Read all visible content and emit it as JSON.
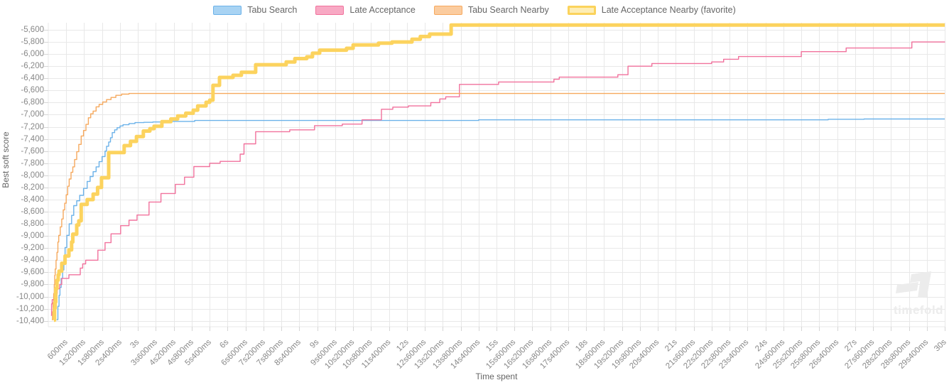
{
  "legend": {
    "items": [
      {
        "id": "tabu-search",
        "label": "Tabu Search",
        "fill": "#a8d3f3",
        "border": "#6cb2e9",
        "border_width": 1.5
      },
      {
        "id": "late-acceptance",
        "label": "Late Acceptance",
        "fill": "#f8a9c4",
        "border": "#f1729d",
        "border_width": 1.5
      },
      {
        "id": "tabu-search-nearby",
        "label": "Tabu Search Nearby",
        "fill": "#fbcc9f",
        "border": "#f6a95e",
        "border_width": 1.5
      },
      {
        "id": "late-acceptance-nearby",
        "label": "Late Acceptance Nearby (favorite)",
        "fill": "#fdedb5",
        "border": "#fbd35c",
        "border_width": 3
      }
    ]
  },
  "y_axis": {
    "title": "Best soft score",
    "ticks": [
      "-5,600",
      "-5,800",
      "-6,000",
      "-6,200",
      "-6,400",
      "-6,600",
      "-6,800",
      "-7,000",
      "-7,200",
      "-7,400",
      "-7,600",
      "-7,800",
      "-8,000",
      "-8,200",
      "-8,400",
      "-8,600",
      "-8,800",
      "-9,000",
      "-9,200",
      "-9,400",
      "-9,600",
      "-9,800",
      "-10,000",
      "-10,200",
      "-10,400"
    ]
  },
  "x_axis": {
    "title": "Time spent",
    "ticks": [
      "600ms",
      "1s200ms",
      "1s800ms",
      "2s400ms",
      "3s",
      "3s600ms",
      "4s200ms",
      "4s800ms",
      "5s400ms",
      "6s",
      "6s600ms",
      "7s200ms",
      "7s800ms",
      "8s400ms",
      "9s",
      "9s600ms",
      "10s200ms",
      "10s800ms",
      "11s400ms",
      "12s",
      "12s600ms",
      "13s200ms",
      "13s800ms",
      "14s400ms",
      "15s",
      "15s600ms",
      "16s200ms",
      "16s800ms",
      "17s400ms",
      "18s",
      "18s600ms",
      "19s200ms",
      "19s800ms",
      "20s400ms",
      "21s",
      "21s600ms",
      "22s200ms",
      "22s800ms",
      "23s400ms",
      "24s",
      "24s600ms",
      "25s200ms",
      "25s800ms",
      "26s400ms",
      "27s",
      "27s600ms",
      "28s200ms",
      "28s800ms",
      "29s400ms",
      "30s"
    ]
  },
  "watermark": {
    "text": "timefold"
  },
  "chart_data": {
    "type": "line",
    "stepped": true,
    "title": "",
    "xlabel": "Time spent",
    "ylabel": "Best soft score",
    "x_unit": "ms",
    "x_range_ms": [
      0,
      30000
    ],
    "x_tick_interval_ms": 600,
    "y_range": [
      -10400,
      -5600
    ],
    "y_tick_interval": 200,
    "grid": true,
    "legend_position": "top",
    "series": [
      {
        "name": "Tabu Search",
        "color": "#6cb2e9",
        "width": 1.4,
        "points": [
          [
            280,
            -10380
          ],
          [
            320,
            -10160
          ],
          [
            360,
            -9980
          ],
          [
            390,
            -9850
          ],
          [
            430,
            -9700
          ],
          [
            480,
            -9560
          ],
          [
            520,
            -9390
          ],
          [
            560,
            -9190
          ],
          [
            620,
            -8990
          ],
          [
            700,
            -8800
          ],
          [
            780,
            -8660
          ],
          [
            850,
            -8500
          ],
          [
            950,
            -8420
          ],
          [
            1050,
            -8330
          ],
          [
            1180,
            -8215
          ],
          [
            1300,
            -8100
          ],
          [
            1400,
            -8020
          ],
          [
            1500,
            -7940
          ],
          [
            1600,
            -7860
          ],
          [
            1700,
            -7775
          ],
          [
            1800,
            -7690
          ],
          [
            1900,
            -7600
          ],
          [
            1950,
            -7520
          ],
          [
            2020,
            -7450
          ],
          [
            2080,
            -7380
          ],
          [
            2140,
            -7295
          ],
          [
            2220,
            -7250
          ],
          [
            2300,
            -7215
          ],
          [
            2400,
            -7185
          ],
          [
            2500,
            -7165
          ],
          [
            2700,
            -7145
          ],
          [
            2900,
            -7130
          ],
          [
            3200,
            -7125
          ],
          [
            3500,
            -7120
          ],
          [
            4000,
            -7110
          ],
          [
            4900,
            -7095
          ],
          [
            14400,
            -7085
          ],
          [
            26100,
            -7075
          ],
          [
            27300,
            -7070
          ],
          [
            30000,
            -7070
          ]
        ]
      },
      {
        "name": "Late Acceptance",
        "color": "#f1729d",
        "width": 1.4,
        "points": [
          [
            90,
            -10310
          ],
          [
            110,
            -10120
          ],
          [
            130,
            -10050
          ],
          [
            200,
            -9950
          ],
          [
            300,
            -9870
          ],
          [
            380,
            -9800
          ],
          [
            450,
            -9700
          ],
          [
            690,
            -9640
          ],
          [
            1070,
            -9530
          ],
          [
            1150,
            -9460
          ],
          [
            1250,
            -9400
          ],
          [
            1660,
            -9235
          ],
          [
            1900,
            -9110
          ],
          [
            2100,
            -8965
          ],
          [
            2420,
            -8830
          ],
          [
            2700,
            -8740
          ],
          [
            2970,
            -8655
          ],
          [
            3370,
            -8440
          ],
          [
            3770,
            -8300
          ],
          [
            4250,
            -8150
          ],
          [
            4560,
            -8030
          ],
          [
            4870,
            -7855
          ],
          [
            5400,
            -7800
          ],
          [
            5750,
            -7770
          ],
          [
            6420,
            -7650
          ],
          [
            6550,
            -7480
          ],
          [
            6940,
            -7280
          ],
          [
            8080,
            -7250
          ],
          [
            8910,
            -7180
          ],
          [
            9840,
            -7155
          ],
          [
            10500,
            -7085
          ],
          [
            11150,
            -6910
          ],
          [
            11530,
            -6875
          ],
          [
            12050,
            -6855
          ],
          [
            12800,
            -6800
          ],
          [
            13100,
            -6740
          ],
          [
            13300,
            -6705
          ],
          [
            13760,
            -6500
          ],
          [
            15070,
            -6460
          ],
          [
            16920,
            -6415
          ],
          [
            17100,
            -6380
          ],
          [
            19060,
            -6340
          ],
          [
            19400,
            -6200
          ],
          [
            20200,
            -6155
          ],
          [
            22200,
            -6130
          ],
          [
            22600,
            -6085
          ],
          [
            23100,
            -6040
          ],
          [
            25200,
            -5960
          ],
          [
            26700,
            -5900
          ],
          [
            28900,
            -5800
          ],
          [
            30000,
            -5795
          ]
        ]
      },
      {
        "name": "Tabu Search Nearby",
        "color": "#f6a95e",
        "width": 1.4,
        "points": [
          [
            120,
            -10380
          ],
          [
            140,
            -10250
          ],
          [
            160,
            -10100
          ],
          [
            180,
            -9950
          ],
          [
            200,
            -9800
          ],
          [
            215,
            -9650
          ],
          [
            230,
            -9545
          ],
          [
            260,
            -9400
          ],
          [
            290,
            -9270
          ],
          [
            320,
            -9100
          ],
          [
            350,
            -8990
          ],
          [
            400,
            -8850
          ],
          [
            450,
            -8720
          ],
          [
            500,
            -8570
          ],
          [
            550,
            -8460
          ],
          [
            600,
            -8320
          ],
          [
            650,
            -8180
          ],
          [
            700,
            -8060
          ],
          [
            760,
            -7950
          ],
          [
            820,
            -7860
          ],
          [
            880,
            -7740
          ],
          [
            950,
            -7610
          ],
          [
            1020,
            -7490
          ],
          [
            1100,
            -7350
          ],
          [
            1180,
            -7260
          ],
          [
            1260,
            -7160
          ],
          [
            1340,
            -7050
          ],
          [
            1420,
            -6985
          ],
          [
            1500,
            -6940
          ],
          [
            1600,
            -6870
          ],
          [
            1700,
            -6830
          ],
          [
            1820,
            -6790
          ],
          [
            1950,
            -6750
          ],
          [
            2100,
            -6715
          ],
          [
            2260,
            -6680
          ],
          [
            2450,
            -6660
          ],
          [
            2700,
            -6650
          ],
          [
            30000,
            -6650
          ]
        ]
      },
      {
        "name": "Late Acceptance Nearby (favorite)",
        "color": "#fcd35e",
        "width": 5,
        "points": [
          [
            190,
            -10390
          ],
          [
            210,
            -10190
          ],
          [
            230,
            -10090
          ],
          [
            250,
            -9870
          ],
          [
            290,
            -9730
          ],
          [
            330,
            -9640
          ],
          [
            360,
            -9580
          ],
          [
            450,
            -9450
          ],
          [
            560,
            -9330
          ],
          [
            690,
            -9230
          ],
          [
            780,
            -9100
          ],
          [
            820,
            -8970
          ],
          [
            950,
            -8820
          ],
          [
            1020,
            -8750
          ],
          [
            1100,
            -8480
          ],
          [
            1300,
            -8400
          ],
          [
            1500,
            -8310
          ],
          [
            1650,
            -8200
          ],
          [
            1780,
            -8040
          ],
          [
            2020,
            -7625
          ],
          [
            2540,
            -7510
          ],
          [
            2750,
            -7440
          ],
          [
            2950,
            -7360
          ],
          [
            3180,
            -7270
          ],
          [
            3400,
            -7230
          ],
          [
            3540,
            -7190
          ],
          [
            3800,
            -7115
          ],
          [
            4100,
            -7070
          ],
          [
            4330,
            -7020
          ],
          [
            4600,
            -6975
          ],
          [
            4850,
            -6925
          ],
          [
            5000,
            -6855
          ],
          [
            5280,
            -6795
          ],
          [
            5400,
            -6760
          ],
          [
            5510,
            -6515
          ],
          [
            5730,
            -6385
          ],
          [
            6180,
            -6350
          ],
          [
            6460,
            -6300
          ],
          [
            6940,
            -6175
          ],
          [
            7960,
            -6130
          ],
          [
            8250,
            -6075
          ],
          [
            8650,
            -6045
          ],
          [
            8840,
            -5985
          ],
          [
            9080,
            -5935
          ],
          [
            9980,
            -5905
          ],
          [
            10200,
            -5850
          ],
          [
            11050,
            -5820
          ],
          [
            11500,
            -5800
          ],
          [
            12170,
            -5755
          ],
          [
            12450,
            -5710
          ],
          [
            12760,
            -5670
          ],
          [
            13480,
            -5520
          ],
          [
            30000,
            -5520
          ]
        ]
      }
    ]
  }
}
